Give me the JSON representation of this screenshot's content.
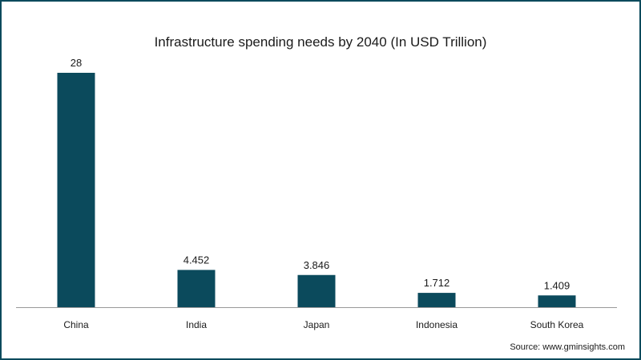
{
  "chart_data": {
    "type": "bar",
    "title": "Infrastructure spending needs by 2040 (In USD Trillion)",
    "categories": [
      "China",
      "India",
      "Japan",
      "Indonesia",
      "South Korea"
    ],
    "values": [
      28,
      4.452,
      3.846,
      1.712,
      1.409
    ],
    "value_labels": [
      "28",
      "4.452",
      "3.846",
      "1.712",
      "1.409"
    ],
    "ylim": [
      0,
      28
    ],
    "grid": false,
    "legend": "none",
    "bar_color": "#0b4a5c"
  },
  "footer": {
    "source": "Source: www.gminsights.com"
  }
}
